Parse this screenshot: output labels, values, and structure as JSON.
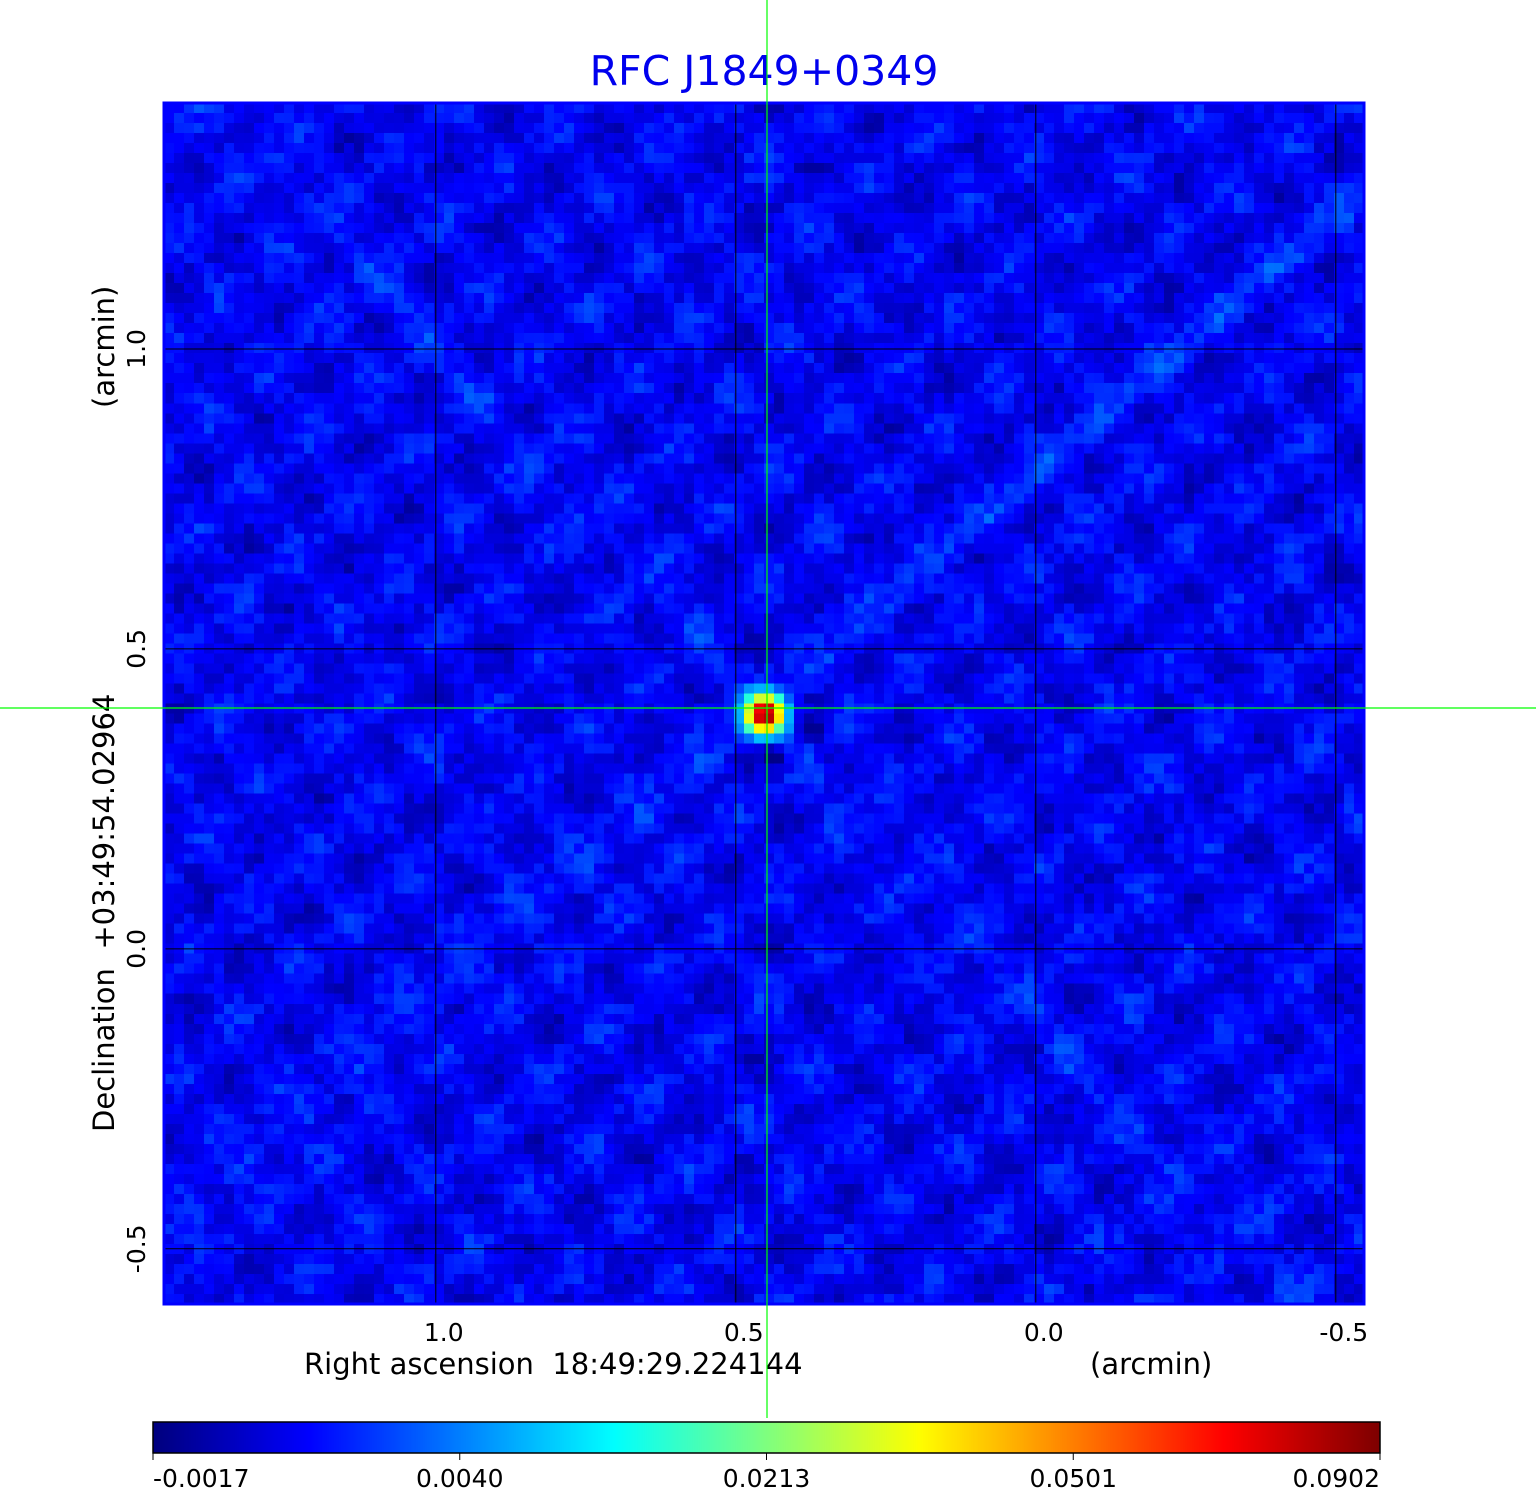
{
  "chart_data": {
    "type": "heatmap",
    "title": "RFC J1849+0349",
    "xlabel": "Right ascension  18:49:29.224144",
    "xunit": "(arcmin)",
    "ylabel": "Declination  +03:49:54.02964",
    "yunit": "(arcmin)",
    "x_ticks": [
      1.0,
      0.5,
      0.0,
      -0.5
    ],
    "x_tick_labels": [
      "1.0",
      "0.5",
      "0.0",
      "-0.5"
    ],
    "y_ticks": [
      1.0,
      0.5,
      0.0,
      -0.5
    ],
    "y_tick_labels": [
      "1.0",
      "0.5",
      "0.0",
      "-0.5"
    ],
    "xlim": [
      1.453,
      -0.547
    ],
    "ylim": [
      -0.592,
      1.41
    ],
    "grid": true,
    "colormap": "jet",
    "colorbar": {
      "ticks": [
        -0.0017,
        0.004,
        0.0213,
        0.0501,
        0.0902
      ],
      "tick_labels": [
        "-0.0017",
        "0.0040",
        "0.0213",
        "0.0501",
        "0.0902"
      ],
      "placement": "bottom"
    },
    "source_peak": {
      "ra_offset": 0.46,
      "dec_offset": 0.4,
      "value": 0.0902
    },
    "crosshair": {
      "ra_offset": 0.45,
      "dec_offset": 0.4
    },
    "pixel_size_arcmin": 0.0167
  },
  "colors": {
    "title": "#0000ee",
    "crosshair": "#00ff00",
    "grid": "#000000",
    "frame": "#0000ff"
  }
}
